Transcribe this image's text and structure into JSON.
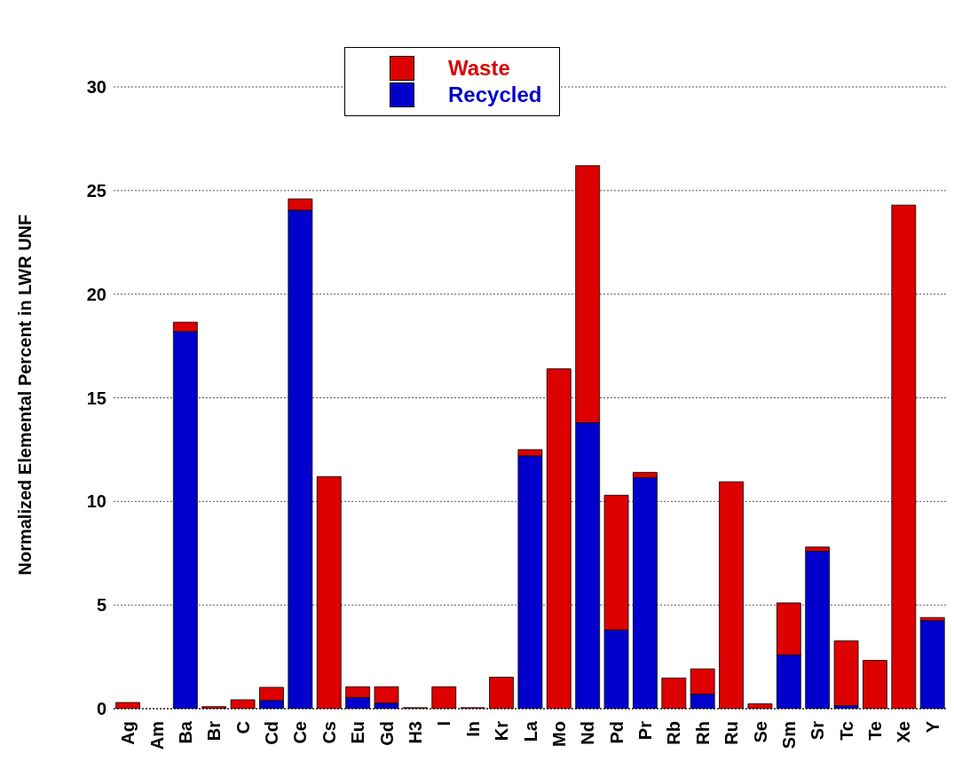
{
  "chart_data": {
    "type": "bar",
    "stacked": true,
    "ylabel": "Normalized Elemental Percent in LWR UNF",
    "categories": [
      "Ag",
      "Am",
      "Ba",
      "Br",
      "C",
      "Cd",
      "Ce",
      "Cs",
      "Eu",
      "Gd",
      "H3",
      "I",
      "In",
      "Kr",
      "La",
      "Mo",
      "Nd",
      "Pd",
      "Pr",
      "Rb",
      "Rh",
      "Ru",
      "Se",
      "Sm",
      "Sr",
      "Tc",
      "Te",
      "Xe",
      "Y"
    ],
    "series": [
      {
        "name": "Recycled",
        "color": "#0000cc",
        "values": [
          0,
          0,
          18.2,
          0,
          0,
          0.4,
          24.05,
          0,
          0.54,
          0.27,
          0,
          0,
          0,
          0,
          12.2,
          0,
          13.8,
          3.8,
          11.15,
          0,
          0.7,
          0,
          0,
          2.6,
          7.6,
          0.15,
          0,
          0,
          4.25
        ]
      },
      {
        "name": "Waste",
        "color": "#dd0000",
        "values": [
          0.3,
          0,
          0.45,
          0.1,
          0.43,
          0.63,
          0.55,
          11.2,
          0.52,
          0.79,
          0.05,
          1.06,
          0.05,
          1.52,
          0.3,
          16.4,
          12.4,
          6.5,
          0.25,
          1.48,
          1.22,
          10.95,
          0.24,
          2.5,
          0.2,
          3.12,
          2.33,
          24.3,
          0.15
        ]
      }
    ],
    "ylim": [
      0,
      30
    ],
    "yticks": [
      0,
      5,
      10,
      15,
      20,
      25,
      30
    ],
    "grid": "y",
    "legend": "top left"
  }
}
